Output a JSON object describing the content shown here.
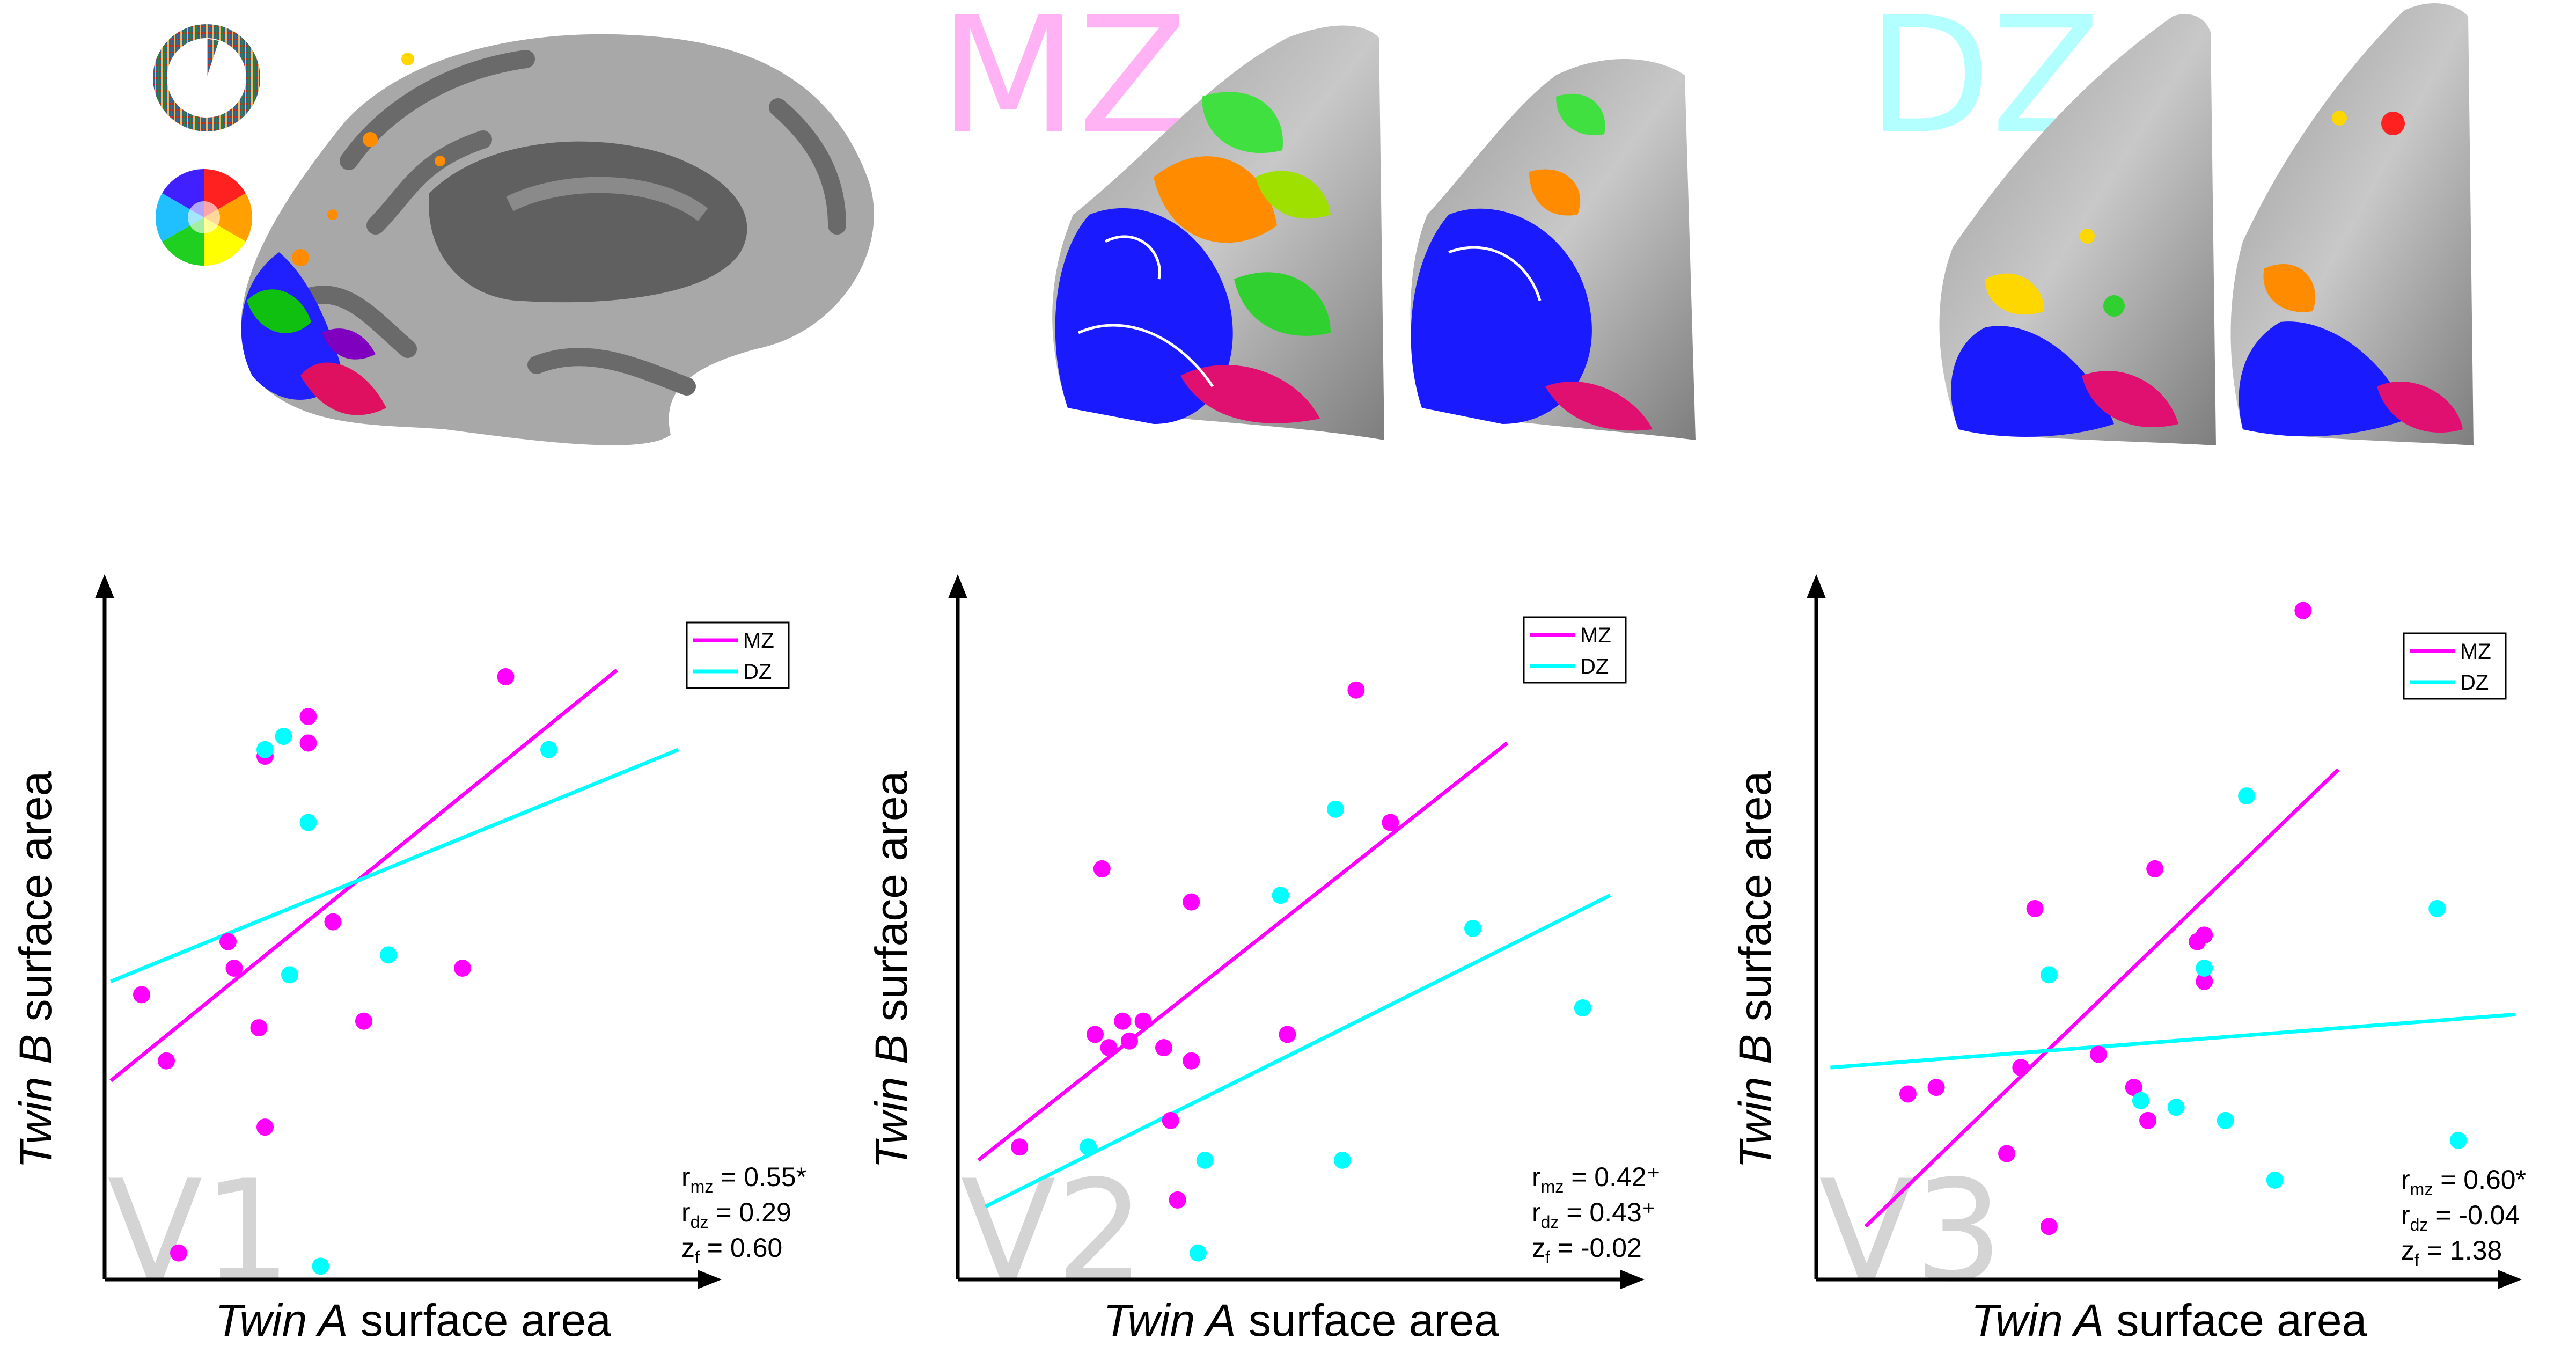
{
  "header": {
    "group_mz": "MZ",
    "group_dz": "DZ"
  },
  "colors": {
    "mz": "#ff00ff",
    "dz": "#00ffff",
    "mz_title": "#ffb3f5",
    "dz_title": "#b3ffff",
    "panel_label": "#d4d4d4",
    "axis": "#000000"
  },
  "icons": [
    "polar-angle-wheel-icon",
    "color-wheel-icon"
  ],
  "chart_data": [
    {
      "type": "scatter",
      "panel_label": "V1",
      "xlabel_pre": "Twin A",
      "xlabel_post": " surface area",
      "ylabel_pre": "Twin B",
      "ylabel_post": " surface area",
      "legend": [
        "MZ",
        "DZ"
      ],
      "legend_position": "top-right",
      "xlim": [
        0,
        100
      ],
      "ylim": [
        0,
        100
      ],
      "stats": [
        {
          "sym": "r",
          "sub": "mz",
          "text": " = 0.55*"
        },
        {
          "sym": "r",
          "sub": "dz",
          "text": " = 0.29"
        },
        {
          "sym": "z",
          "sub": "f",
          "text": " = 0.60"
        }
      ],
      "series": [
        {
          "name": "MZ",
          "points": [
            [
              6,
              43
            ],
            [
              10,
              33
            ],
            [
              12,
              4
            ],
            [
              20,
              51
            ],
            [
              21,
              47
            ],
            [
              25,
              38
            ],
            [
              26,
              79
            ],
            [
              26,
              23
            ],
            [
              33,
              81
            ],
            [
              33,
              85
            ],
            [
              37,
              54
            ],
            [
              42,
              39
            ],
            [
              58,
              47
            ],
            [
              65,
              91
            ]
          ],
          "fit": [
            [
              1,
              30
            ],
            [
              83,
              92
            ]
          ]
        },
        {
          "name": "DZ",
          "points": [
            [
              26,
              80
            ],
            [
              29,
              82
            ],
            [
              30,
              46
            ],
            [
              33,
              69
            ],
            [
              35,
              2
            ],
            [
              46,
              49
            ],
            [
              72,
              80
            ]
          ],
          "fit": [
            [
              1,
              45
            ],
            [
              93,
              80
            ]
          ]
        }
      ]
    },
    {
      "type": "scatter",
      "panel_label": "V2",
      "xlabel_pre": "Twin A",
      "xlabel_post": " surface area",
      "ylabel_pre": "Twin B",
      "ylabel_post": " surface area",
      "legend": [
        "MZ",
        "DZ"
      ],
      "legend_position": "top-right",
      "xlim": [
        0,
        100
      ],
      "ylim": [
        0,
        100
      ],
      "stats": [
        {
          "sym": "r",
          "sub": "mz",
          "text": " = 0.42⁺"
        },
        {
          "sym": "r",
          "sub": "dz",
          "text": " = 0.43⁺"
        },
        {
          "sym": "z",
          "sub": "f",
          "text": " = -0.02"
        }
      ],
      "series": [
        {
          "name": "MZ",
          "points": [
            [
              9,
              20
            ],
            [
              20,
              37
            ],
            [
              21,
              62
            ],
            [
              22,
              35
            ],
            [
              24,
              39
            ],
            [
              25,
              36
            ],
            [
              27,
              39
            ],
            [
              30,
              35
            ],
            [
              31,
              24
            ],
            [
              32,
              12
            ],
            [
              34,
              33
            ],
            [
              34,
              57
            ],
            [
              48,
              37
            ],
            [
              58,
              89
            ],
            [
              63,
              69
            ]
          ],
          "fit": [
            [
              3,
              18
            ],
            [
              80,
              81
            ]
          ]
        },
        {
          "name": "DZ",
          "points": [
            [
              19,
              20
            ],
            [
              35,
              4
            ],
            [
              36,
              18
            ],
            [
              47,
              58
            ],
            [
              55,
              71
            ],
            [
              56,
              18
            ],
            [
              75,
              53
            ],
            [
              91,
              41
            ]
          ],
          "fit": [
            [
              4,
              11
            ],
            [
              95,
              58
            ]
          ]
        }
      ]
    },
    {
      "type": "scatter",
      "panel_label": "V3",
      "xlabel_pre": "Twin A",
      "xlabel_post": " surface area",
      "ylabel_pre": "Twin B",
      "ylabel_post": " surface area",
      "legend": [
        "MZ",
        "DZ"
      ],
      "legend_position": "top-right",
      "xlim": [
        0,
        100
      ],
      "ylim": [
        0,
        100
      ],
      "stats": [
        {
          "sym": "r",
          "sub": "mz",
          "text": " = 0.60*"
        },
        {
          "sym": "r",
          "sub": "dz",
          "text": " = -0.04"
        },
        {
          "sym": "z",
          "sub": "f",
          "text": " = 1.38"
        }
      ],
      "series": [
        {
          "name": "MZ",
          "points": [
            [
              13,
              28
            ],
            [
              17,
              29
            ],
            [
              27,
              19
            ],
            [
              29,
              32
            ],
            [
              31,
              56
            ],
            [
              33,
              8
            ],
            [
              40,
              34
            ],
            [
              45,
              29
            ],
            [
              47,
              24
            ],
            [
              48,
              62
            ],
            [
              54,
              51
            ],
            [
              55,
              52
            ],
            [
              55,
              45
            ],
            [
              69,
              101
            ]
          ],
          "fit": [
            [
              7,
              8
            ],
            [
              74,
              77
            ]
          ]
        },
        {
          "name": "DZ",
          "points": [
            [
              33,
              46
            ],
            [
              46,
              27
            ],
            [
              51,
              26
            ],
            [
              55,
              47
            ],
            [
              58,
              24
            ],
            [
              61,
              73
            ],
            [
              65,
              15
            ],
            [
              88,
              56
            ],
            [
              91,
              21
            ]
          ],
          "fit": [
            [
              2,
              32
            ],
            [
              99,
              40
            ]
          ]
        }
      ]
    }
  ]
}
